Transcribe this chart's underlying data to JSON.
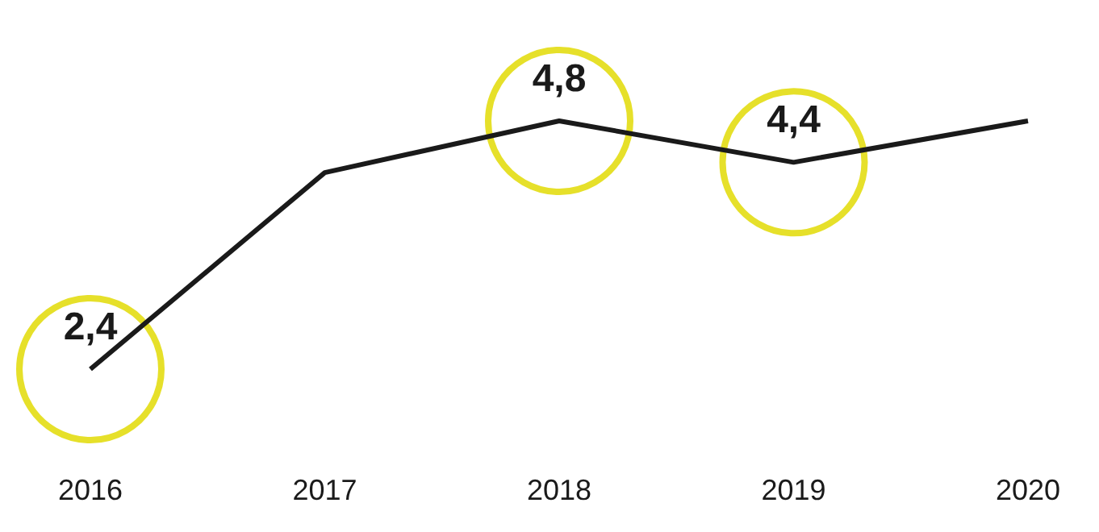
{
  "chart_data": {
    "type": "line",
    "categories": [
      "2016",
      "2017",
      "2018",
      "2019",
      "2020"
    ],
    "series": [
      {
        "color": "#1a1a1a",
        "values": [
          2.4,
          4.3,
          4.8,
          4.4,
          4.8
        ],
        "value_labels": [
          "2,4",
          null,
          "4,8",
          "4,4",
          null
        ]
      }
    ],
    "grid": false
  }
}
